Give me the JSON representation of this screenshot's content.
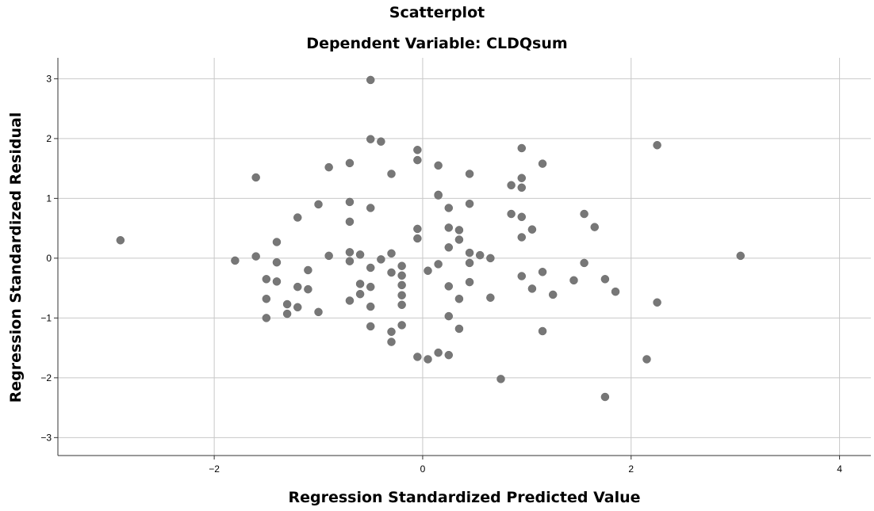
{
  "chart_data": {
    "type": "scatter",
    "title": "Scatterplot",
    "subtitle": "Dependent Variable: CLDQsum",
    "xlabel": "Regression Standardized Predicted Value",
    "ylabel": "Regression Standardized Residual",
    "xlim": [
      -3.5,
      4.3
    ],
    "ylim": [
      -3.3,
      3.35
    ],
    "xticks": [
      -2,
      0,
      2,
      4
    ],
    "yticks": [
      -3,
      -2,
      -1,
      0,
      1,
      2,
      3
    ],
    "xtick_labels": [
      "−2",
      "0",
      "2",
      "4"
    ],
    "ytick_labels": [
      "−3",
      "−2",
      "−1",
      "0",
      "1",
      "2",
      "3"
    ],
    "grid": true,
    "marker_color": "#777777",
    "points": [
      [
        -2.9,
        0.3
      ],
      [
        -1.8,
        -0.04
      ],
      [
        -1.6,
        1.35
      ],
      [
        -1.6,
        0.03
      ],
      [
        -1.5,
        -0.35
      ],
      [
        -1.5,
        -0.68
      ],
      [
        -1.5,
        -1.0
      ],
      [
        -1.4,
        0.27
      ],
      [
        -1.4,
        -0.07
      ],
      [
        -1.4,
        -0.39
      ],
      [
        -1.3,
        -0.77
      ],
      [
        -1.3,
        -0.93
      ],
      [
        -1.2,
        0.68
      ],
      [
        -1.2,
        -0.48
      ],
      [
        -1.2,
        -0.82
      ],
      [
        -1.1,
        -0.2
      ],
      [
        -1.1,
        -0.52
      ],
      [
        -1.0,
        0.9
      ],
      [
        -1.0,
        -0.9
      ],
      [
        -0.9,
        1.52
      ],
      [
        -0.9,
        0.04
      ],
      [
        -0.7,
        1.59
      ],
      [
        -0.7,
        0.94
      ],
      [
        -0.7,
        0.61
      ],
      [
        -0.7,
        0.1
      ],
      [
        -0.7,
        -0.05
      ],
      [
        -0.7,
        -0.71
      ],
      [
        -0.6,
        0.06
      ],
      [
        -0.6,
        -0.43
      ],
      [
        -0.6,
        -0.6
      ],
      [
        -0.5,
        2.98
      ],
      [
        -0.5,
        1.99
      ],
      [
        -0.5,
        0.84
      ],
      [
        -0.5,
        -0.16
      ],
      [
        -0.5,
        -0.48
      ],
      [
        -0.5,
        -0.81
      ],
      [
        -0.5,
        -1.14
      ],
      [
        -0.4,
        1.95
      ],
      [
        -0.4,
        -0.02
      ],
      [
        -0.3,
        1.41
      ],
      [
        -0.3,
        0.08
      ],
      [
        -0.3,
        -0.24
      ],
      [
        -0.3,
        -1.23
      ],
      [
        -0.3,
        -1.4
      ],
      [
        -0.2,
        -0.13
      ],
      [
        -0.2,
        -0.29
      ],
      [
        -0.2,
        -0.45
      ],
      [
        -0.2,
        -0.62
      ],
      [
        -0.2,
        -0.78
      ],
      [
        -0.2,
        -1.12
      ],
      [
        -0.05,
        1.81
      ],
      [
        -0.05,
        1.64
      ],
      [
        -0.05,
        0.49
      ],
      [
        -0.05,
        0.33
      ],
      [
        -0.05,
        -1.65
      ],
      [
        0.05,
        -0.21
      ],
      [
        0.05,
        -1.69
      ],
      [
        0.15,
        1.55
      ],
      [
        0.15,
        1.06
      ],
      [
        0.15,
        1.05
      ],
      [
        0.15,
        -0.1
      ],
      [
        0.15,
        -1.58
      ],
      [
        0.25,
        0.84
      ],
      [
        0.25,
        0.51
      ],
      [
        0.25,
        0.18
      ],
      [
        0.25,
        -0.47
      ],
      [
        0.25,
        -0.97
      ],
      [
        0.25,
        -1.62
      ],
      [
        0.35,
        0.47
      ],
      [
        0.35,
        0.31
      ],
      [
        0.35,
        -0.68
      ],
      [
        0.35,
        -1.18
      ],
      [
        0.45,
        1.41
      ],
      [
        0.45,
        0.91
      ],
      [
        0.45,
        0.09
      ],
      [
        0.45,
        -0.08
      ],
      [
        0.45,
        -0.4
      ],
      [
        0.55,
        0.05
      ],
      [
        0.65,
        0.0
      ],
      [
        0.65,
        -0.66
      ],
      [
        0.75,
        -2.02
      ],
      [
        0.85,
        1.22
      ],
      [
        0.85,
        0.74
      ],
      [
        0.95,
        1.84
      ],
      [
        0.95,
        1.34
      ],
      [
        0.95,
        1.18
      ],
      [
        0.95,
        0.69
      ],
      [
        0.95,
        0.35
      ],
      [
        0.95,
        -0.3
      ],
      [
        1.05,
        0.48
      ],
      [
        1.05,
        -0.51
      ],
      [
        1.15,
        1.58
      ],
      [
        1.15,
        -0.23
      ],
      [
        1.15,
        -1.22
      ],
      [
        1.25,
        -0.61
      ],
      [
        1.45,
        -0.37
      ],
      [
        1.55,
        0.74
      ],
      [
        1.55,
        -0.08
      ],
      [
        1.65,
        0.52
      ],
      [
        1.75,
        -0.35
      ],
      [
        1.75,
        -2.32
      ],
      [
        1.85,
        -0.56
      ],
      [
        2.15,
        -1.69
      ],
      [
        2.25,
        1.89
      ],
      [
        2.25,
        -0.74
      ],
      [
        3.05,
        0.04
      ]
    ]
  }
}
